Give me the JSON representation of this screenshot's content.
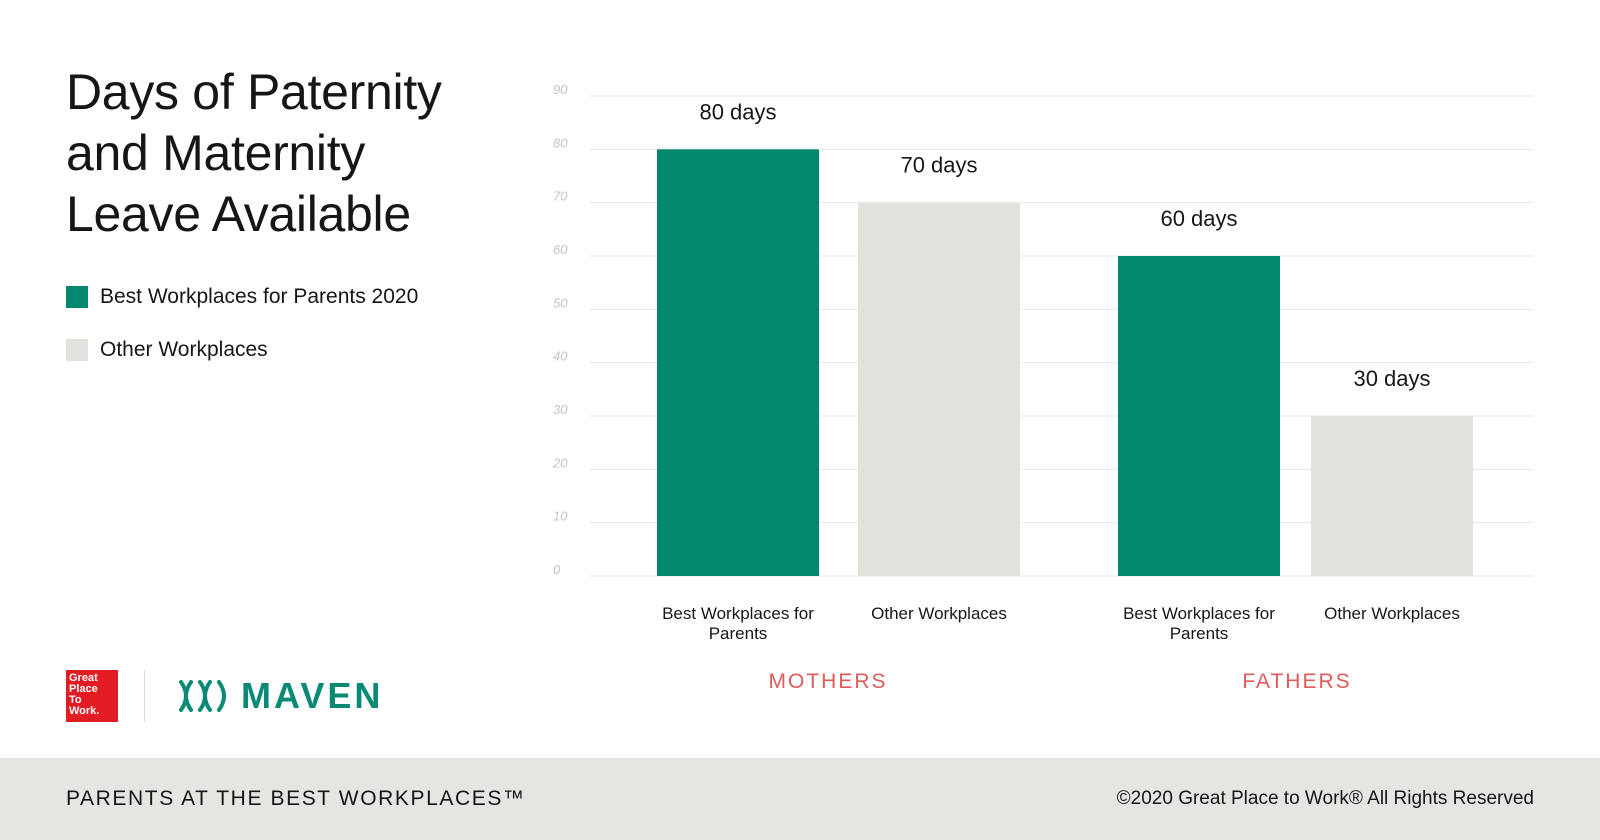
{
  "title": "Days of Paternity\nand Maternity\nLeave Available",
  "colors": {
    "best": "#04876f",
    "other": "#e2e1dc",
    "group_label": "#e05a5a",
    "grid": "#e6e6e6"
  },
  "chart_data": {
    "type": "bar",
    "title": "Days of Paternity and Maternity Leave Available",
    "ylim": [
      0,
      90
    ],
    "yticks": [
      0,
      10,
      20,
      30,
      40,
      50,
      60,
      70,
      80,
      90
    ],
    "grid": true,
    "legend_placement": "left",
    "series": [
      {
        "name": "Best Workplaces for Parents 2020",
        "color": "#04876f"
      },
      {
        "name": "Other Workplaces",
        "color": "#e2e1dc"
      }
    ],
    "groups": [
      {
        "label": "MOTHERS",
        "bars": [
          {
            "category": "Best Workplaces for Parents",
            "series": 0,
            "value": 80,
            "label": "80 days"
          },
          {
            "category": "Other Workplaces",
            "series": 1,
            "value": 70,
            "label": "70 days"
          }
        ]
      },
      {
        "label": "FATHERS",
        "bars": [
          {
            "category": "Best Workplaces for Parents",
            "series": 0,
            "value": 60,
            "label": "60 days"
          },
          {
            "category": "Other Workplaces",
            "series": 1,
            "value": 30,
            "label": "30 days"
          }
        ]
      }
    ]
  },
  "logos": {
    "gptw_text": "Great\nPlace\nTo\nWork.",
    "maven": "MAVEN"
  },
  "footer": {
    "left": "PARENTS AT THE BEST WORKPLACES™",
    "right": "©2020 Great Place to Work® All Rights Reserved"
  }
}
